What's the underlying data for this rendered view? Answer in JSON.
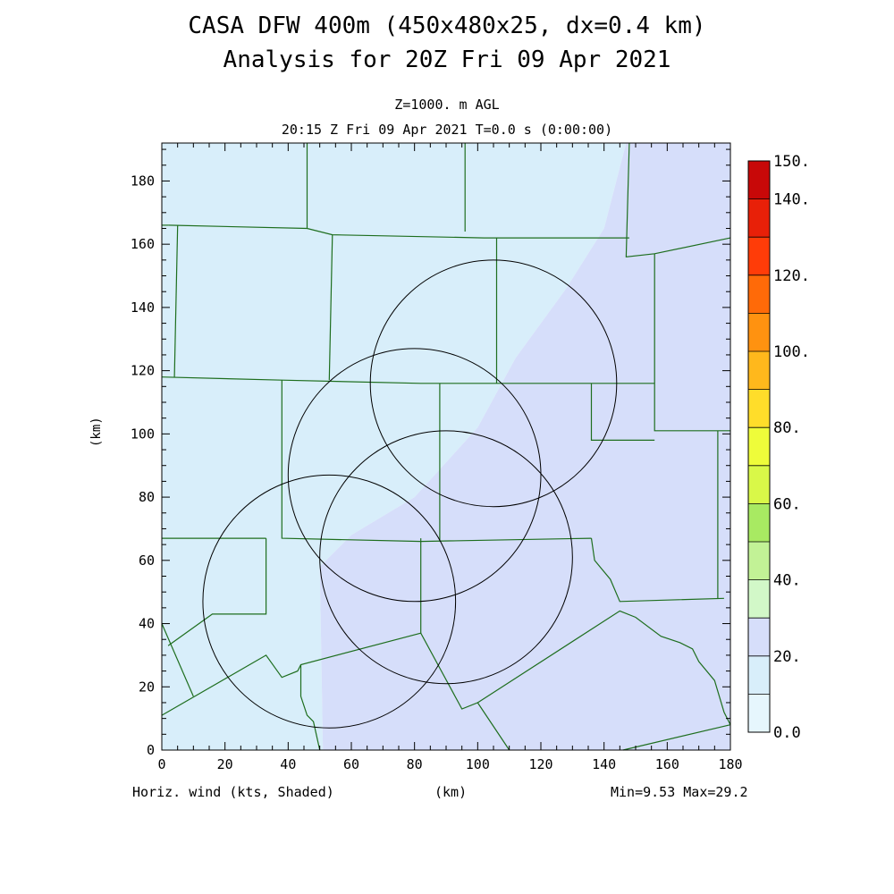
{
  "colors": {
    "background": "#ffffff",
    "boundary": "#1e6e1e",
    "range_ring": "#000000",
    "field_low": "#d8eefa",
    "field_high": "#d6defa"
  },
  "chart_data": {
    "type": "heatmap",
    "title": "CASA DFW 400m (450x480x25, dx=0.4 km)",
    "subtitle": "Analysis for 20Z Fri 09 Apr 2021",
    "level_label": "Z=1000. m AGL",
    "time_label": "20:15 Z Fri 09 Apr 2021   T=0.0 s (0:00:00)",
    "xlabel": "(km)",
    "ylabel": "(km)",
    "xlim": [
      0,
      180
    ],
    "ylim": [
      0,
      192
    ],
    "x_ticks": [
      "0",
      "20",
      "40",
      "60",
      "80",
      "100",
      "120",
      "140",
      "160",
      "180"
    ],
    "y_ticks": [
      "0",
      "20",
      "40",
      "60",
      "80",
      "100",
      "120",
      "140",
      "160",
      "180"
    ],
    "field_label": "Horiz. wind (kts, Shaded)",
    "min_max_label": "Min=9.53 Max=29.2",
    "colorbar": {
      "levels": [
        0,
        10,
        20,
        30,
        40,
        50,
        60,
        70,
        80,
        90,
        100,
        110,
        120,
        130,
        140,
        150
      ],
      "labels": [
        {
          "text": "0.0",
          "value": 0
        },
        {
          "text": "20.",
          "value": 20
        },
        {
          "text": "40.",
          "value": 40
        },
        {
          "text": "60.",
          "value": 60
        },
        {
          "text": "80.",
          "value": 80
        },
        {
          "text": "100.",
          "value": 100
        },
        {
          "text": "120.",
          "value": 120
        },
        {
          "text": "140.",
          "value": 140
        },
        {
          "text": "150.",
          "value": 150
        }
      ],
      "colors": [
        "#e6f6fd",
        "#d8eefa",
        "#d6defa",
        "#d2f8c8",
        "#c2f296",
        "#a8ea62",
        "#d9f848",
        "#eefc3a",
        "#ffdd2a",
        "#ffb81c",
        "#ff9210",
        "#ff6a08",
        "#ff3c08",
        "#e82008",
        "#c80808"
      ]
    },
    "shaded_regions": [
      {
        "range": "10-20",
        "color": "#d8eefa",
        "polygon": [
          [
            0,
            192
          ],
          [
            147,
            192
          ],
          [
            140,
            165
          ],
          [
            128,
            146
          ],
          [
            112,
            124
          ],
          [
            100,
            102
          ],
          [
            80,
            80
          ],
          [
            60,
            68
          ],
          [
            50,
            58
          ],
          [
            51,
            0
          ],
          [
            0,
            0
          ]
        ]
      },
      {
        "range": "20-30",
        "color": "#d6defa",
        "polygon": [
          [
            147,
            192
          ],
          [
            180,
            192
          ],
          [
            180,
            0
          ],
          [
            51,
            0
          ],
          [
            50,
            58
          ],
          [
            60,
            68
          ],
          [
            80,
            80
          ],
          [
            100,
            102
          ],
          [
            112,
            124
          ],
          [
            128,
            146
          ],
          [
            140,
            165
          ]
        ]
      }
    ],
    "range_rings_km": [
      {
        "cx": 105,
        "cy": 116,
        "r": 39
      },
      {
        "cx": 80,
        "cy": 87,
        "r": 40
      },
      {
        "cx": 90,
        "cy": 61,
        "r": 40
      },
      {
        "cx": 53,
        "cy": 47,
        "r": 40
      }
    ],
    "boundaries_km": [
      [
        [
          2,
          166
        ],
        [
          0,
          166
        ]
      ],
      [
        [
          2,
          166
        ],
        [
          46,
          165
        ],
        [
          54,
          163
        ],
        [
          102,
          162
        ],
        [
          148,
          162
        ]
      ],
      [
        [
          46,
          192
        ],
        [
          46,
          165
        ]
      ],
      [
        [
          96,
          192
        ],
        [
          96,
          164
        ]
      ],
      [
        [
          148,
          192
        ],
        [
          147,
          156
        ],
        [
          156,
          157
        ],
        [
          180,
          162
        ]
      ],
      [
        [
          5,
          166
        ],
        [
          4,
          118
        ]
      ],
      [
        [
          0,
          118
        ],
        [
          38,
          117
        ],
        [
          82,
          116
        ],
        [
          156,
          116
        ]
      ],
      [
        [
          54,
          163
        ],
        [
          53,
          117
        ]
      ],
      [
        [
          106,
          162
        ],
        [
          106,
          116
        ]
      ],
      [
        [
          156,
          157
        ],
        [
          156,
          101
        ],
        [
          178,
          101
        ],
        [
          180,
          101
        ]
      ],
      [
        [
          38,
          117
        ],
        [
          38,
          67
        ],
        [
          82,
          66
        ],
        [
          136,
          67
        ]
      ],
      [
        [
          88,
          116
        ],
        [
          88,
          66
        ]
      ],
      [
        [
          136,
          116
        ],
        [
          136,
          98
        ],
        [
          156,
          98
        ]
      ],
      [
        [
          0,
          67
        ],
        [
          33,
          67
        ]
      ],
      [
        [
          33,
          67
        ],
        [
          33,
          43
        ],
        [
          16,
          43
        ],
        [
          2,
          33
        ]
      ],
      [
        [
          0,
          40
        ],
        [
          10,
          17
        ]
      ],
      [
        [
          0,
          11
        ],
        [
          33,
          30
        ],
        [
          38,
          23
        ],
        [
          43,
          25
        ],
        [
          44,
          27
        ],
        [
          82,
          37
        ],
        [
          95,
          13
        ],
        [
          100,
          15
        ],
        [
          110,
          0
        ]
      ],
      [
        [
          82,
          67
        ],
        [
          82,
          37
        ]
      ],
      [
        [
          136,
          67
        ],
        [
          137,
          60
        ],
        [
          142,
          54
        ],
        [
          145,
          47
        ],
        [
          178,
          48
        ]
      ],
      [
        [
          100,
          15
        ],
        [
          145,
          44
        ],
        [
          150,
          42
        ],
        [
          158,
          36
        ],
        [
          164,
          34
        ],
        [
          168,
          32
        ],
        [
          170,
          28
        ],
        [
          175,
          22
        ],
        [
          178,
          12
        ],
        [
          180,
          8
        ]
      ],
      [
        [
          146,
          0
        ],
        [
          180,
          8
        ]
      ],
      [
        [
          176,
          101
        ],
        [
          176,
          48
        ]
      ],
      [
        [
          44,
          27
        ],
        [
          44,
          17
        ],
        [
          46,
          11
        ],
        [
          48,
          9
        ],
        [
          50,
          0
        ]
      ]
    ]
  }
}
